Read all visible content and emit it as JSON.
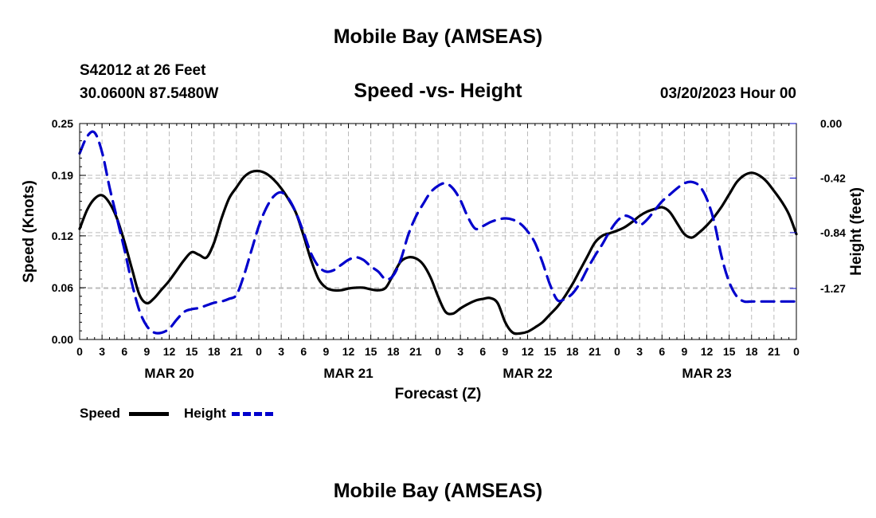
{
  "header": {
    "title": "Mobile Bay (AMSEAS)",
    "station": "S42012 at 26 Feet",
    "coords": "30.0600N  87.5480W",
    "subtitle": "Speed -vs- Height",
    "datetime": "03/20/2023 Hour 00"
  },
  "footer": {
    "title": "Mobile Bay (AMSEAS)"
  },
  "legend": {
    "placement": "bottom-left",
    "items": [
      {
        "label": "Speed",
        "color": "#000000",
        "style": "solid"
      },
      {
        "label": "Height",
        "color": "#0000cc",
        "style": "dashed"
      }
    ]
  },
  "chart_data": {
    "type": "line",
    "title": "Speed -vs- Height",
    "xlabel": "Forecast (Z)",
    "ylabel": "Speed (Knots)",
    "y2label": "Height (feet)",
    "grid": true,
    "x_unit": "hours from 03/20/2023 00Z",
    "xlim": [
      0,
      96
    ],
    "ylim": [
      0,
      0.25
    ],
    "y2lim": [
      -1.663,
      0.0
    ],
    "x_ticks": [
      0,
      3,
      6,
      9,
      12,
      15,
      18,
      21,
      24,
      27,
      30,
      33,
      36,
      39,
      42,
      45,
      48,
      51,
      54,
      57,
      60,
      63,
      66,
      69,
      72,
      75,
      78,
      81,
      84,
      87,
      90,
      93,
      96
    ],
    "x_tick_labels": [
      "0",
      "3",
      "6",
      "9",
      "12",
      "15",
      "18",
      "21",
      "0",
      "3",
      "6",
      "9",
      "12",
      "15",
      "18",
      "21",
      "0",
      "3",
      "6",
      "9",
      "12",
      "15",
      "18",
      "21",
      "0",
      "3",
      "6",
      "9",
      "12",
      "15",
      "18",
      "21",
      "0"
    ],
    "date_labels": [
      {
        "label": "MAR 20",
        "at": 12
      },
      {
        "label": "MAR 21",
        "at": 36
      },
      {
        "label": "MAR 22",
        "at": 60
      },
      {
        "label": "MAR 23",
        "at": 84
      }
    ],
    "y_ticks": [
      0.0,
      0.06,
      0.12,
      0.19,
      0.25
    ],
    "y_tick_labels": [
      "0.00",
      "0.06",
      "0.12",
      "0.19",
      "0.25"
    ],
    "y2_ticks": [
      0.0,
      -0.42,
      -0.84,
      -1.27
    ],
    "y2_tick_labels": [
      "0.00",
      "-0.42",
      "-0.84",
      "-1.27"
    ],
    "series": [
      {
        "name": "Speed",
        "axis": "left",
        "color": "#000000",
        "x": [
          0,
          1,
          2,
          3,
          4,
          5,
          6,
          7,
          8,
          9,
          10,
          11,
          12,
          13,
          14,
          15,
          16,
          17,
          18,
          19,
          20,
          21,
          22,
          23,
          24,
          25,
          26,
          27,
          28,
          29,
          30,
          31,
          32,
          33,
          34,
          35,
          36,
          37,
          38,
          39,
          40,
          41,
          42,
          43,
          44,
          45,
          46,
          47,
          48,
          49,
          50,
          51,
          52,
          53,
          54,
          55,
          56,
          57,
          58,
          59,
          60,
          61,
          62,
          63,
          64,
          65,
          66,
          67,
          68,
          69,
          70,
          71,
          72,
          73,
          74,
          75,
          76,
          77,
          78,
          79,
          80,
          81,
          82,
          83,
          84,
          85,
          86,
          87,
          88,
          89,
          90,
          91,
          92,
          93,
          94,
          95,
          96
        ],
        "values": [
          0.128,
          0.15,
          0.163,
          0.167,
          0.158,
          0.14,
          0.113,
          0.082,
          0.052,
          0.042,
          0.048,
          0.058,
          0.068,
          0.08,
          0.092,
          0.101,
          0.098,
          0.095,
          0.112,
          0.14,
          0.163,
          0.176,
          0.188,
          0.194,
          0.195,
          0.192,
          0.185,
          0.175,
          0.162,
          0.146,
          0.12,
          0.092,
          0.07,
          0.06,
          0.057,
          0.057,
          0.059,
          0.06,
          0.06,
          0.058,
          0.057,
          0.06,
          0.075,
          0.09,
          0.095,
          0.094,
          0.087,
          0.072,
          0.05,
          0.032,
          0.03,
          0.036,
          0.041,
          0.045,
          0.047,
          0.048,
          0.042,
          0.02,
          0.008,
          0.007,
          0.009,
          0.014,
          0.02,
          0.029,
          0.038,
          0.05,
          0.064,
          0.08,
          0.096,
          0.112,
          0.12,
          0.123,
          0.126,
          0.13,
          0.136,
          0.143,
          0.148,
          0.151,
          0.153,
          0.148,
          0.135,
          0.122,
          0.118,
          0.124,
          0.132,
          0.142,
          0.154,
          0.168,
          0.182,
          0.19,
          0.193,
          0.19,
          0.183,
          0.172,
          0.16,
          0.145,
          0.122
        ]
      },
      {
        "name": "Height",
        "axis": "right",
        "color": "#0000cc",
        "x": [
          0,
          1,
          2,
          3,
          4,
          5,
          6,
          7,
          8,
          9,
          10,
          11,
          12,
          13,
          14,
          15,
          16,
          17,
          18,
          19,
          20,
          21,
          22,
          23,
          24,
          25,
          26,
          27,
          28,
          29,
          30,
          31,
          32,
          33,
          34,
          35,
          36,
          37,
          38,
          39,
          40,
          41,
          42,
          43,
          44,
          45,
          46,
          47,
          48,
          49,
          50,
          51,
          52,
          53,
          54,
          55,
          56,
          57,
          58,
          59,
          60,
          61,
          62,
          63,
          64,
          65,
          66,
          67,
          68,
          69,
          70,
          71,
          72,
          73,
          74,
          75,
          76,
          77,
          78,
          79,
          80,
          81,
          82,
          83,
          84,
          85,
          86,
          87,
          88,
          89,
          90,
          91,
          92,
          93,
          94,
          95,
          96
        ],
        "values": [
          -0.23,
          -0.1,
          -0.07,
          -0.22,
          -0.49,
          -0.73,
          -0.97,
          -1.23,
          -1.44,
          -1.56,
          -1.61,
          -1.61,
          -1.58,
          -1.51,
          -1.45,
          -1.43,
          -1.42,
          -1.4,
          -1.38,
          -1.37,
          -1.35,
          -1.32,
          -1.17,
          -0.98,
          -0.79,
          -0.65,
          -0.56,
          -0.53,
          -0.58,
          -0.69,
          -0.84,
          -1.0,
          -1.1,
          -1.14,
          -1.13,
          -1.09,
          -1.05,
          -1.03,
          -1.05,
          -1.1,
          -1.14,
          -1.2,
          -1.17,
          -1.05,
          -0.86,
          -0.72,
          -0.62,
          -0.53,
          -0.48,
          -0.46,
          -0.5,
          -0.59,
          -0.72,
          -0.81,
          -0.79,
          -0.76,
          -0.74,
          -0.73,
          -0.74,
          -0.77,
          -0.83,
          -0.92,
          -1.07,
          -1.24,
          -1.36,
          -1.35,
          -1.31,
          -1.23,
          -1.12,
          -1.02,
          -0.93,
          -0.83,
          -0.75,
          -0.71,
          -0.73,
          -0.78,
          -0.74,
          -0.67,
          -0.6,
          -0.55,
          -0.5,
          -0.46,
          -0.45,
          -0.48,
          -0.58,
          -0.76,
          -1.03,
          -1.22,
          -1.33,
          -1.37,
          -1.37,
          -1.37,
          -1.37,
          -1.37,
          -1.37,
          -1.37,
          -1.37
        ]
      }
    ]
  }
}
